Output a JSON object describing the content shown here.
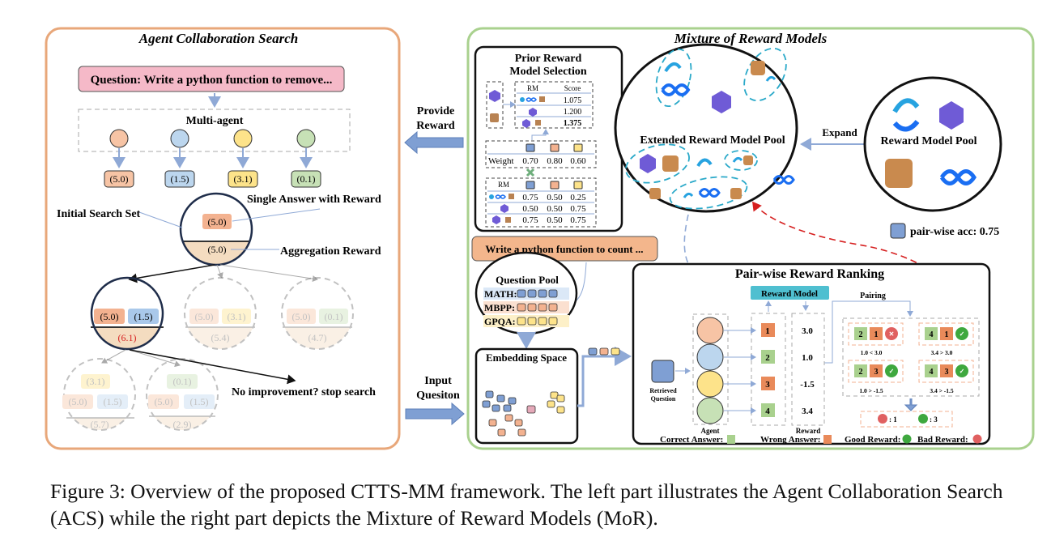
{
  "figure": {
    "caption": "Figure 3: Overview of the proposed CTTS-MM framework. The left part illustrates the Agent Collaboration Search (ACS) while the right part depicts the Mixture of Reward Models (MoR).",
    "colors": {
      "orange_panel": "#e8a77a",
      "green_panel": "#a9d18e",
      "agent_orange": "#f7c4a5",
      "agent_blue": "#bcd6ee",
      "agent_yellow": "#fde38a",
      "agent_green": "#c7e1b6",
      "red_curve": "#d62020",
      "rm_header": "#4fbfd0"
    }
  },
  "acs": {
    "title": "Agent Collaboration Search",
    "question": "Question: Write a python function to remove...",
    "multi_agent": "Multi-agent",
    "agent_rewards": [
      "(5.0)",
      "(1.5)",
      "(3.1)",
      "(0.1)"
    ],
    "initial_search_set": "Initial Search Set",
    "single_answer_with_reward": "Single Answer with Reward",
    "aggregation_reward": "Aggregation Reward",
    "root": {
      "answers": [
        "(5.0)"
      ],
      "aggregate": "(5.0)"
    },
    "level2": [
      {
        "answers": [
          "(5.0)",
          "(1.5)"
        ],
        "aggregate": "(6.1)",
        "selected": true
      },
      {
        "answers": [
          "(5.0)",
          "(3.1)"
        ],
        "aggregate": "(5.4)",
        "selected": false
      },
      {
        "answers": [
          "(5.0)",
          "(0.1)"
        ],
        "aggregate": "(4.7)",
        "selected": false
      }
    ],
    "level3": [
      {
        "answers": [
          "(3.1)",
          "(5.0)",
          "(1.5)"
        ],
        "aggregate": "(5.7)"
      },
      {
        "answers": [
          "(0.1)",
          "(5.0)",
          "(1.5)"
        ],
        "aggregate": "(2.9)"
      }
    ],
    "stop_label": "No improvement? stop search"
  },
  "mor": {
    "title": "Mixture of Reward Models",
    "provide_reward": [
      "Provide",
      "Reward"
    ],
    "input_question": [
      "Input",
      "Quesiton"
    ],
    "prior_selection": {
      "title": [
        "Prior Reward",
        "Model Selection"
      ],
      "score_table": {
        "headers": [
          "RM",
          "Score"
        ],
        "scores": [
          "1.075",
          "1.200",
          "1.375"
        ]
      },
      "weight_label": "Weight",
      "weights": [
        "0.70",
        "0.80",
        "0.60"
      ],
      "acc_table": {
        "header": "RM",
        "rows": [
          [
            "0.75",
            "0.50",
            "0.25"
          ],
          [
            "0.50",
            "0.50",
            "0.75"
          ],
          [
            "0.75",
            "0.50",
            "0.75"
          ]
        ]
      }
    },
    "extended_pool": "Extended Reward Model Pool",
    "expand": "Expand",
    "reward_model_pool": "Reward Model Pool",
    "pairwise_acc": "pair-wise acc: 0.75",
    "retrieved_question_text": "Write a python function to count ...",
    "question_pool": {
      "title": "Question Pool",
      "rows": [
        "MATH:",
        "MBPP:",
        "GPQA:"
      ]
    },
    "embedding_space": "Embedding Space",
    "ranking": {
      "title": "Pair-wise Reward Ranking",
      "reward_model": "Reward Model",
      "pairing": "Pairing",
      "retrieved_question": [
        "Retrieved",
        "Question"
      ],
      "agent_label": "Agent",
      "reward_label": "Reward",
      "answers": [
        {
          "id": "1",
          "correct": false,
          "reward": "3.0"
        },
        {
          "id": "2",
          "correct": true,
          "reward": "1.0"
        },
        {
          "id": "3",
          "correct": false,
          "reward": "-1.5"
        },
        {
          "id": "4",
          "correct": true,
          "reward": "3.4"
        }
      ],
      "pairs": [
        {
          "a": "2",
          "b": "1",
          "good": false,
          "cmp": "1.0 < 3.0"
        },
        {
          "a": "4",
          "b": "1",
          "good": true,
          "cmp": "3.4 > 3.0"
        },
        {
          "a": "2",
          "b": "3",
          "good": true,
          "cmp": "1.0 > -1.5"
        },
        {
          "a": "4",
          "b": "3",
          "good": true,
          "cmp": "3.4 > -1.5"
        }
      ],
      "bad_count": ": 1",
      "good_count": ": 3",
      "legend": {
        "correct": "Correct Answer:",
        "wrong": "Wrong Answer:",
        "good": "Good Reward:",
        "bad": "Bad Reward:"
      }
    }
  }
}
